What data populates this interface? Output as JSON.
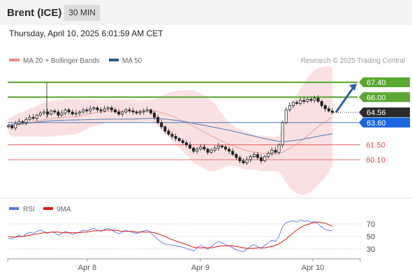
{
  "header": {
    "title": "Brent (ICE)",
    "timeframe": "30 MIN"
  },
  "timestamp": "Thursday, April 10, 2025 6:01:59 AM CET",
  "legend": {
    "ma20": "MA 20 + Bollinger Bands",
    "ma50": "MA 50",
    "credit": "Research © 2025 Trading Central"
  },
  "colors": {
    "support": "#e04848",
    "resistance": "#5aa832",
    "current": "#2b2b2b",
    "ma50": "#4a78b8",
    "bollinger": "#f9dcdc",
    "ma20": "#e8a0a0",
    "rsi": "#5a78e0",
    "rsi_ma": "#e01818",
    "arrow": "#2a5ea8"
  },
  "chart_data": [
    {
      "type": "candlestick",
      "y_range": [
        58.7,
        68.3
      ],
      "x_labels": [
        "Apr 8",
        "Apr 9",
        "Apr 10"
      ],
      "levels": [
        {
          "label": "67.40",
          "value": 67.4,
          "kind": "resistance"
        },
        {
          "label": "66.00",
          "value": 66.0,
          "kind": "resistance"
        },
        {
          "label": "64.56",
          "value": 64.56,
          "kind": "current"
        },
        {
          "label": "63.60",
          "value": 63.6,
          "kind": "ma50"
        },
        {
          "label": "61.50",
          "value": 61.5,
          "kind": "support"
        },
        {
          "label": "60.10",
          "value": 60.1,
          "kind": "support"
        }
      ],
      "price_close": [
        63.3,
        63.1,
        63.5,
        63.7,
        63.6,
        63.9,
        64.1,
        64.0,
        64.3,
        64.5,
        64.6,
        64.4,
        64.7,
        64.6,
        64.3,
        64.5,
        64.8,
        64.6,
        64.4,
        64.5,
        64.6,
        64.8,
        64.7,
        64.9,
        65.0,
        64.8,
        64.7,
        64.9,
        65.0,
        64.8,
        64.6,
        64.4,
        64.6,
        64.8,
        64.7,
        64.6,
        64.5,
        64.6,
        64.7,
        64.8,
        64.5,
        64.1,
        63.6,
        63.2,
        62.8,
        62.5,
        62.3,
        62.1,
        61.9,
        61.7,
        61.5,
        61.2,
        60.9,
        61.1,
        61.3,
        61.1,
        60.8,
        61.0,
        61.2,
        61.4,
        61.3,
        61.1,
        60.9,
        60.6,
        60.3,
        60.0,
        59.8,
        60.1,
        60.4,
        60.6,
        60.3,
        60.0,
        60.4,
        60.7,
        61.0,
        60.8,
        61.5,
        63.6,
        64.8,
        65.2,
        65.5,
        65.4,
        65.7,
        65.6,
        65.8,
        65.7,
        65.9,
        65.6,
        65.2,
        64.9,
        64.7,
        64.56
      ],
      "ma50_start_end": [
        63.6,
        62.5
      ],
      "projection_target": 67.4
    },
    {
      "type": "line",
      "name": "RSI",
      "y_range": [
        20,
        80
      ],
      "ticks": [
        70,
        50,
        30
      ],
      "series_names": [
        "RSI",
        "9MA"
      ],
      "rsi": [
        47,
        46,
        49,
        52,
        50,
        54,
        57,
        55,
        58,
        60,
        58,
        55,
        57,
        56,
        52,
        55,
        58,
        56,
        53,
        55,
        57,
        60,
        59,
        61,
        63,
        60,
        58,
        61,
        63,
        60,
        57,
        54,
        57,
        60,
        58,
        56,
        55,
        57,
        59,
        60,
        56,
        50,
        45,
        41,
        38,
        37,
        36,
        35,
        34,
        33,
        31,
        29,
        27,
        32,
        36,
        33,
        30,
        34,
        38,
        42,
        40,
        37,
        35,
        32,
        29,
        27,
        26,
        30,
        34,
        37,
        34,
        31,
        36,
        40,
        44,
        42,
        50,
        66,
        72,
        74,
        75,
        73,
        76,
        74,
        75,
        73,
        74,
        70,
        65,
        61,
        60,
        59
      ],
      "rsi_ma": [
        50,
        49,
        49,
        50,
        50,
        51,
        52,
        53,
        54,
        55,
        56,
        56,
        57,
        57,
        57,
        56,
        56,
        56,
        56,
        56,
        56,
        57,
        57,
        58,
        59,
        59,
        59,
        60,
        60,
        60,
        60,
        59,
        58,
        58,
        58,
        58,
        57,
        57,
        57,
        57,
        57,
        56,
        54,
        52,
        50,
        47,
        45,
        43,
        41,
        39,
        37,
        35,
        33,
        32,
        32,
        32,
        32,
        32,
        33,
        34,
        35,
        35,
        35,
        35,
        34,
        33,
        32,
        31,
        31,
        31,
        32,
        32,
        32,
        33,
        34,
        36,
        38,
        42,
        46,
        51,
        56,
        60,
        64,
        67,
        69,
        71,
        72,
        73,
        72,
        71,
        69,
        66
      ]
    }
  ]
}
